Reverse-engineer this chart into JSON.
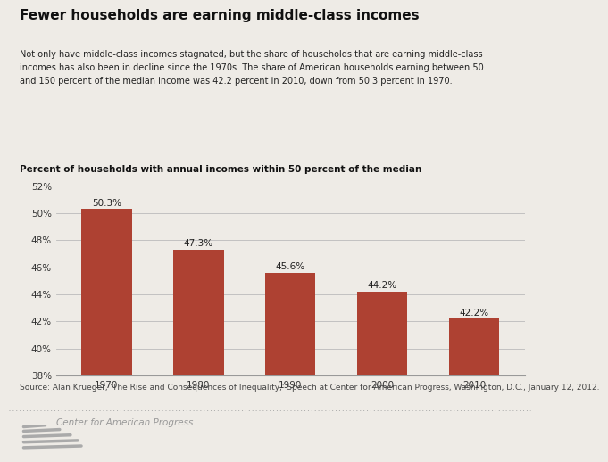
{
  "title": "Fewer households are earning middle-class incomes",
  "subtitle": "Not only have middle-class incomes stagnated, but the share of households that are earning middle-class\nincomes has also been in decline since the 1970s. The share of American households earning between 50\nand 150 percent of the median income was 42.2 percent in 2010, down from 50.3 percent in 1970.",
  "chart_label": "Percent of households with annual incomes within 50 percent of the median",
  "categories": [
    "1970",
    "1980",
    "1990",
    "2000",
    "2010"
  ],
  "values": [
    50.3,
    47.3,
    45.6,
    44.2,
    42.2
  ],
  "bar_labels": [
    "50.3%",
    "47.3%",
    "45.6%",
    "44.2%",
    "42.2%"
  ],
  "bar_color": "#ae4132",
  "background_color": "#eeebe6",
  "ylim": [
    38,
    52
  ],
  "yticks": [
    38,
    40,
    42,
    44,
    46,
    48,
    50,
    52
  ],
  "ytick_labels": [
    "38%",
    "40%",
    "42%",
    "44%",
    "46%",
    "48%",
    "50%",
    "52%"
  ],
  "source_text": "Source: Alan Krueger, 'The Rise and Consequences of Inequality,' Speech at Center for American Progress, Washington, D.C., January 12, 2012.",
  "footer_text": "Center for American Progress",
  "title_fontsize": 11,
  "subtitle_fontsize": 7,
  "chart_label_fontsize": 7.5,
  "bar_label_fontsize": 7.5,
  "tick_fontsize": 7.5,
  "source_fontsize": 6.5
}
